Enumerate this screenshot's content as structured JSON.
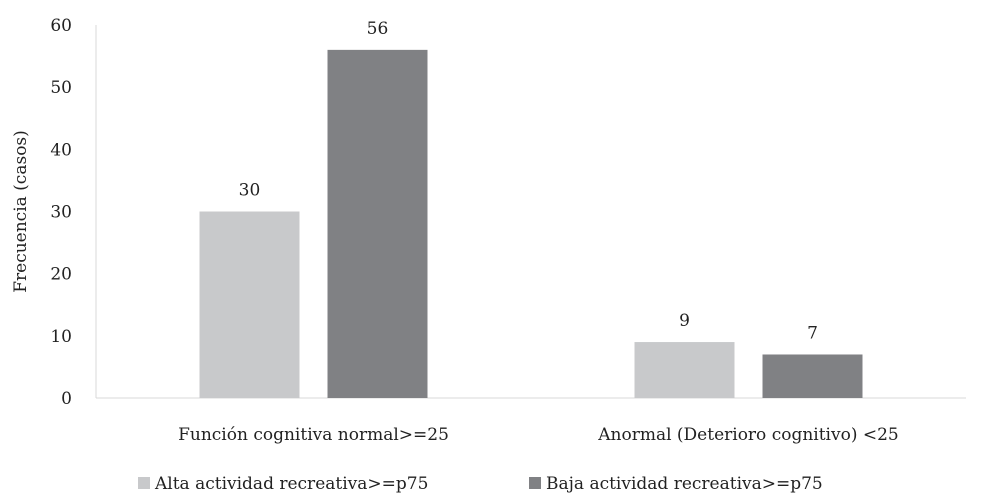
{
  "chart_data": {
    "type": "bar",
    "title": "",
    "xlabel": "",
    "ylabel": "Frecuencia (casos)",
    "ylim": [
      0,
      60
    ],
    "yticks": [
      0,
      10,
      20,
      30,
      40,
      50,
      60
    ],
    "grid": false,
    "legend_position": "bottom",
    "categories": [
      "Función cognitiva normal>=25",
      "Anormal (Deterioro cognitivo) <25"
    ],
    "series": [
      {
        "name": "Alta actividad recreativa>=p75",
        "values": [
          30,
          9
        ],
        "color": "#c8c9cb"
      },
      {
        "name": "Baja actividad recreativa>=p75",
        "values": [
          56,
          7
        ],
        "color": "#808184"
      }
    ],
    "data_labels": true
  }
}
